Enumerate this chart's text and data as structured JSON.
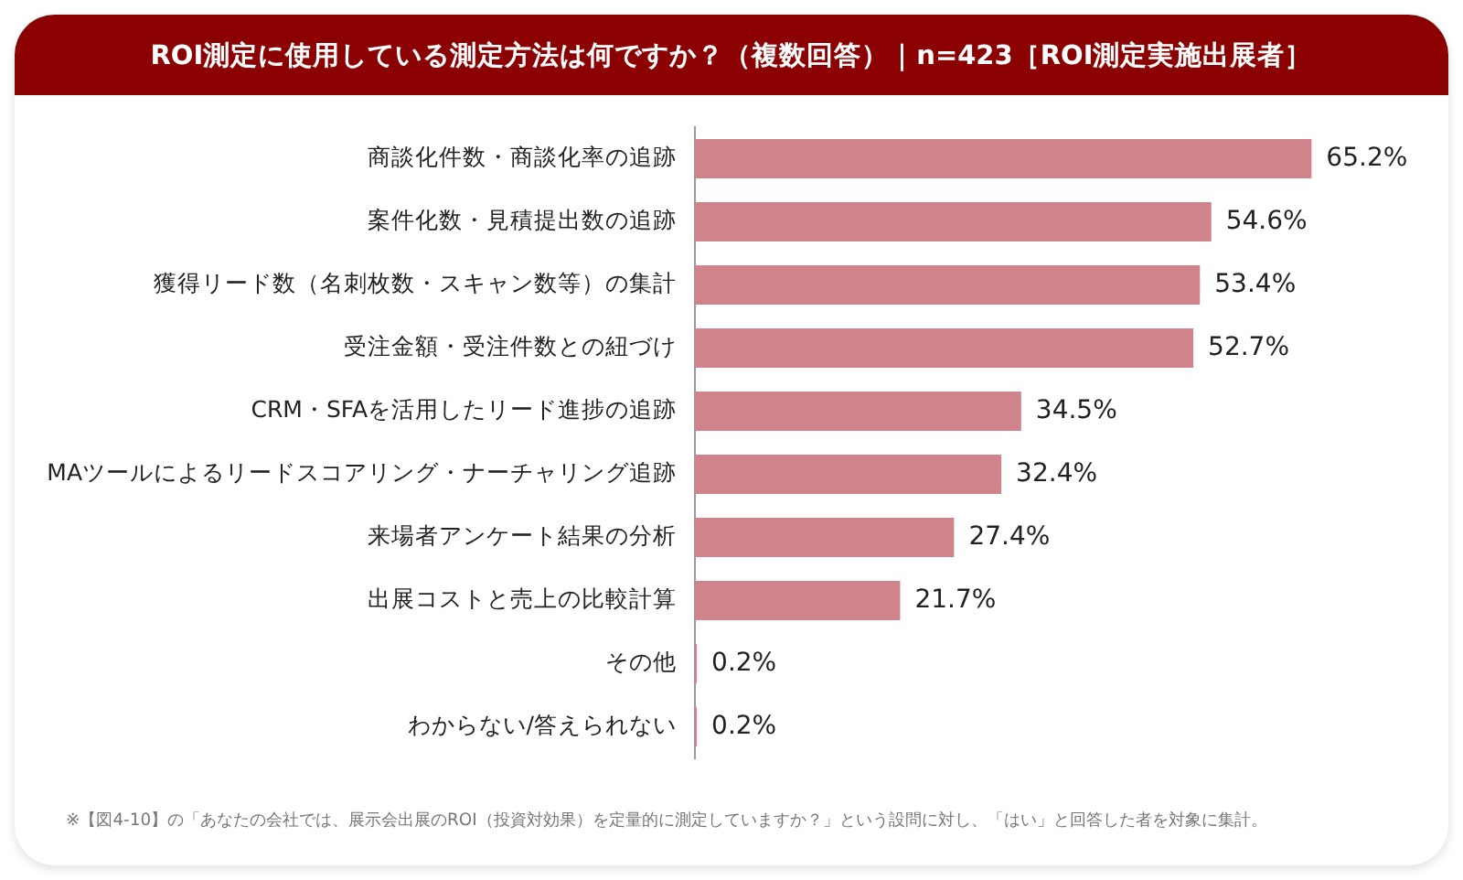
{
  "chart_data": {
    "type": "bar",
    "orientation": "horizontal",
    "title": "ROI測定に使用している測定方法は何ですか？（複数回答）｜n=423［ROI測定実施出展者］",
    "categories": [
      "商談化件数・商談化率の追跡",
      "案件化数・見積提出数の追跡",
      "獲得リード数（名刺枚数・スキャン数等）の集計",
      "受注金額・受注件数との紐づけ",
      "CRM・SFAを活用したリード進捗の追跡",
      "MAツールによるリードスコアリング・ナーチャリング追跡",
      "来場者アンケート結果の分析",
      "出展コストと売上の比較計算",
      "その他",
      "わからない/答えられない"
    ],
    "values": [
      65.2,
      54.6,
      53.4,
      52.7,
      34.5,
      32.4,
      27.4,
      21.7,
      0.2,
      0.2
    ],
    "value_labels": [
      "65.2%",
      "54.6%",
      "53.4%",
      "52.7%",
      "34.5%",
      "32.4%",
      "27.4%",
      "21.7%",
      "0.2%",
      "0.2%"
    ],
    "color": "#d0838b",
    "grid": false,
    "legend": false,
    "annotations": [
      "※【図4-10】の「あなたの会社では、展示会出展のROI（投資対効果）を定量的に測定していますか？」という設問に対し、「はい」と回答した者を対象に集計。"
    ]
  }
}
